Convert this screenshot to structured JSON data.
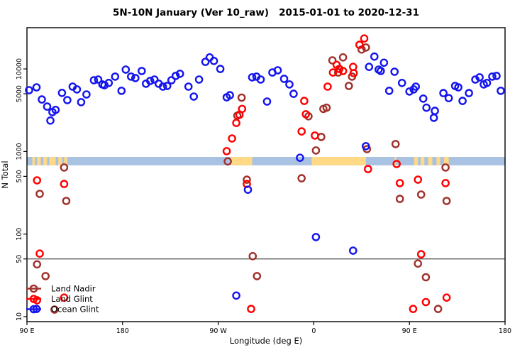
{
  "title": "5N-10N January (Ver 10_raw)   2015-01-01 to 2020-12-31",
  "colors": {
    "land_nadir": "#A0302A",
    "land_glint": "#FF0000",
    "ocean_glint": "#1414EE",
    "band_ocean": "#A9C2E2",
    "band_land": "#FFD985",
    "axis": "#000000",
    "threshold_line": "#1a1a1a"
  },
  "legend": {
    "entries": [
      {
        "label": "Land Nadir",
        "series": "land_nadir"
      },
      {
        "label": "Land Glint",
        "series": "land_glint"
      },
      {
        "label": "Ocean Glint",
        "series": "ocean_glint"
      }
    ]
  },
  "chart_data": {
    "type": "scatter",
    "title": "5N-10N January (Ver 10_raw)   2015-01-01 to 2020-12-31",
    "xlabel": "Longitude (deg E)",
    "ylabel": "N Total",
    "x_axis": {
      "range": [
        90,
        540
      ],
      "ticks": [
        90,
        180,
        270,
        360,
        450,
        540
      ],
      "tick_labels": [
        "90 E",
        "180",
        "90 W",
        "0",
        "90 E",
        "180"
      ],
      "note": "longitude axis wraps eastward from 90E around the globe to 180"
    },
    "y_axis": {
      "scale": "log",
      "range": [
        8.7,
        32000
      ],
      "ticks": [
        10,
        50,
        100,
        500,
        1000,
        5000,
        10000
      ],
      "tick_labels": [
        "10",
        "50",
        "100",
        "500",
        "1000",
        "5000",
        "10000"
      ]
    },
    "grid": false,
    "threshold_line_n": 50,
    "map_band": {
      "comment": "horizontal strip showing ocean(blue)/land(tan) along the 5N-10N latitude band",
      "n_range": [
        680,
        860
      ],
      "land_patches_lon": [
        [
          95,
          97.5
        ],
        [
          99.5,
          103
        ],
        [
          105.5,
          109
        ],
        [
          111,
          117
        ],
        [
          119.5,
          123
        ],
        [
          125,
          128
        ],
        [
          282,
          302
        ],
        [
          358,
          409
        ],
        [
          436,
          437.5
        ],
        [
          454.5,
          458
        ],
        [
          460.5,
          464
        ],
        [
          467.5,
          471.5
        ],
        [
          475.5,
          479
        ],
        [
          482.5,
          487
        ]
      ]
    },
    "series": [
      {
        "name": "Land Nadir",
        "key": "land_nadir",
        "points": [
          [
            405,
            17200
          ],
          [
            409,
            18200
          ],
          [
            387.5,
            13800
          ],
          [
            377.5,
            12700
          ],
          [
            383,
            9060
          ],
          [
            396,
            8070
          ],
          [
            393,
            6230
          ],
          [
            367,
            1500
          ],
          [
            362,
            1030
          ],
          [
            355,
            2670
          ],
          [
            369,
            3280
          ],
          [
            372,
            3390
          ],
          [
            292,
            4490
          ],
          [
            288,
            2720
          ],
          [
            279,
            760
          ],
          [
            410,
            1070
          ],
          [
            437,
            1230
          ],
          [
            484,
            640
          ],
          [
            461,
            301
          ],
          [
            441,
            267
          ],
          [
            485,
            252
          ],
          [
            297,
            456
          ],
          [
            348.5,
            474
          ],
          [
            125,
            640
          ],
          [
            102,
            307
          ],
          [
            127,
            252
          ],
          [
            302.5,
            54
          ],
          [
            306.5,
            31
          ],
          [
            99.5,
            43
          ],
          [
            107.5,
            31
          ],
          [
            458,
            44
          ],
          [
            465.5,
            30
          ],
          [
            477,
            12.4
          ],
          [
            116,
            12.2
          ]
        ]
      },
      {
        "name": "Land Glint",
        "key": "land_glint",
        "points": [
          [
            407.5,
            23400
          ],
          [
            403,
            19600
          ],
          [
            397,
            10600
          ],
          [
            397.5,
            8900
          ],
          [
            384,
            10000
          ],
          [
            387.5,
            9440
          ],
          [
            378,
            9060
          ],
          [
            381.5,
            11200
          ],
          [
            373,
            6110
          ],
          [
            351,
            4100
          ],
          [
            352.5,
            2830
          ],
          [
            292.5,
            3280
          ],
          [
            290,
            2790
          ],
          [
            287,
            2220
          ],
          [
            283,
            1440
          ],
          [
            278,
            1010
          ],
          [
            297,
            405
          ],
          [
            348.5,
            1750
          ],
          [
            361,
            1560
          ],
          [
            411,
            613
          ],
          [
            438,
            706
          ],
          [
            441,
            414
          ],
          [
            458,
            457
          ],
          [
            484,
            414
          ],
          [
            461,
            57
          ],
          [
            102,
            58
          ],
          [
            99.5,
            448
          ],
          [
            125,
            405
          ],
          [
            301,
            12.4
          ],
          [
            465.5,
            15
          ],
          [
            485,
            17
          ],
          [
            453.5,
            12.4
          ],
          [
            99.5,
            15.8
          ],
          [
            125,
            17
          ]
        ]
      },
      {
        "name": "Ocean Glint",
        "key": "ocean_glint",
        "points": [
          [
            92,
            5530
          ],
          [
            99,
            5990
          ],
          [
            104,
            4270
          ],
          [
            109,
            3500
          ],
          [
            114,
            3000
          ],
          [
            112,
            2370
          ],
          [
            117,
            3190
          ],
          [
            123,
            5130
          ],
          [
            128,
            4190
          ],
          [
            133,
            6110
          ],
          [
            137,
            5650
          ],
          [
            141,
            3960
          ],
          [
            146,
            4910
          ],
          [
            153,
            7300
          ],
          [
            157,
            7450
          ],
          [
            161,
            6490
          ],
          [
            163,
            6360
          ],
          [
            167,
            6770
          ],
          [
            173,
            8070
          ],
          [
            179,
            5430
          ],
          [
            183,
            9830
          ],
          [
            188,
            8070
          ],
          [
            192,
            7760
          ],
          [
            198,
            9440
          ],
          [
            202,
            6620
          ],
          [
            206,
            7150
          ],
          [
            210,
            7450
          ],
          [
            214,
            6620
          ],
          [
            218,
            6110
          ],
          [
            222,
            6230
          ],
          [
            226,
            7300
          ],
          [
            230,
            8230
          ],
          [
            234,
            8740
          ],
          [
            242,
            6110
          ],
          [
            247,
            4630
          ],
          [
            252,
            7450
          ],
          [
            258,
            12200
          ],
          [
            262,
            13800
          ],
          [
            266,
            12500
          ],
          [
            272,
            10000
          ],
          [
            278,
            4540
          ],
          [
            281,
            4810
          ],
          [
            302,
            7910
          ],
          [
            306,
            8070
          ],
          [
            310,
            7450
          ],
          [
            316,
            4030
          ],
          [
            321,
            9060
          ],
          [
            326,
            9640
          ],
          [
            332,
            7600
          ],
          [
            337,
            6490
          ],
          [
            341,
            5000
          ],
          [
            347,
            840
          ],
          [
            362,
            92
          ],
          [
            397,
            63
          ],
          [
            409,
            1160
          ],
          [
            412,
            10600
          ],
          [
            417,
            14100
          ],
          [
            421,
            9830
          ],
          [
            423,
            9440
          ],
          [
            426,
            11900
          ],
          [
            431,
            5430
          ],
          [
            436,
            9250
          ],
          [
            443,
            6770
          ],
          [
            450,
            5330
          ],
          [
            454,
            5650
          ],
          [
            456,
            6110
          ],
          [
            463,
            4370
          ],
          [
            466,
            3390
          ],
          [
            473,
            2560
          ],
          [
            474,
            3110
          ],
          [
            482,
            5100
          ],
          [
            487,
            4430
          ],
          [
            493,
            6230
          ],
          [
            496,
            5990
          ],
          [
            500,
            4100
          ],
          [
            506,
            5100
          ],
          [
            512,
            7450
          ],
          [
            516,
            7910
          ],
          [
            520,
            6490
          ],
          [
            523,
            6770
          ],
          [
            528,
            8070
          ],
          [
            532,
            8230
          ],
          [
            536,
            5430
          ],
          [
            298,
            345
          ],
          [
            287,
            18
          ],
          [
            99,
            12.4
          ]
        ]
      }
    ],
    "legend_position": "bottom-left"
  }
}
